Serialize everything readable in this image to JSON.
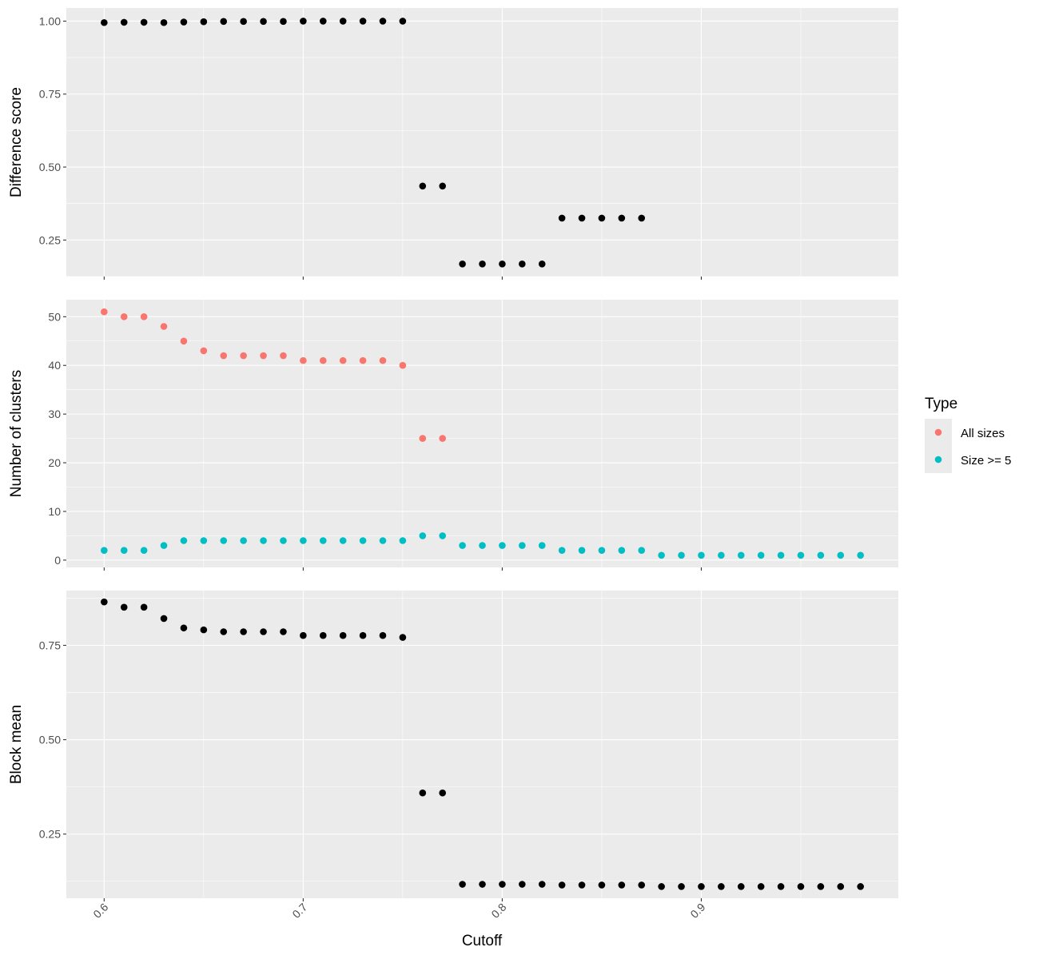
{
  "chart_data": {
    "type": "scatter",
    "xlabel": "Cutoff",
    "xlim": [
      0.581,
      0.999
    ],
    "x_ticks": [
      0.6,
      0.7,
      0.8,
      0.9
    ],
    "x_tick_labels": [
      "0.6",
      "0.7",
      "0.8",
      "0.9"
    ],
    "x": [
      0.6,
      0.61,
      0.62,
      0.63,
      0.64,
      0.65,
      0.66,
      0.67,
      0.68,
      0.69,
      0.7,
      0.71,
      0.72,
      0.73,
      0.74,
      0.75,
      0.76,
      0.77,
      0.78,
      0.79,
      0.8,
      0.81,
      0.82,
      0.83,
      0.84,
      0.85,
      0.86,
      0.87,
      0.88,
      0.89,
      0.9,
      0.91,
      0.92,
      0.93,
      0.94,
      0.95,
      0.96,
      0.97,
      0.98
    ],
    "grid": true,
    "legend": {
      "title": "Type",
      "position": "right",
      "entries": [
        {
          "label": "All sizes",
          "color": "#F8766D"
        },
        {
          "label": "Size >= 5",
          "color": "#00BFC4"
        }
      ]
    },
    "panels": [
      {
        "ylabel": "Difference score",
        "ylim": [
          0.125,
          1.045
        ],
        "y_ticks": [
          0.25,
          0.5,
          0.75,
          1.0
        ],
        "y_tick_labels": [
          "0.25",
          "0.50",
          "0.75",
          "1.00"
        ],
        "series": [
          {
            "color": "#000000",
            "values": [
              0.995,
              0.996,
              0.996,
              0.995,
              0.997,
              0.998,
              0.999,
              0.999,
              0.999,
              0.999,
              1.0,
              1.0,
              1.0,
              1.0,
              1.0,
              1.0,
              0.435,
              0.435,
              0.168,
              0.168,
              0.168,
              0.168,
              0.168,
              0.325,
              0.325,
              0.325,
              0.325,
              0.325,
              null,
              null,
              null,
              null,
              null,
              null,
              null,
              null,
              null,
              null,
              null
            ]
          }
        ]
      },
      {
        "ylabel": "Number of clusters",
        "ylim": [
          -1.5,
          53.5
        ],
        "y_ticks": [
          0,
          10,
          20,
          30,
          40,
          50
        ],
        "y_tick_labels": [
          "0",
          "10",
          "20",
          "30",
          "40",
          "50"
        ],
        "series": [
          {
            "name": "All sizes",
            "color": "#F8766D",
            "values": [
              51,
              50,
              50,
              48,
              45,
              43,
              42,
              42,
              42,
              42,
              41,
              41,
              41,
              41,
              41,
              40,
              25,
              25,
              null,
              null,
              null,
              null,
              null,
              null,
              null,
              null,
              null,
              null,
              null,
              null,
              null,
              null,
              null,
              null,
              null,
              null,
              null,
              null,
              null
            ]
          },
          {
            "name": "Size >= 5",
            "color": "#00BFC4",
            "values": [
              2,
              2,
              2,
              3,
              4,
              4,
              4,
              4,
              4,
              4,
              4,
              4,
              4,
              4,
              4,
              4,
              5,
              5,
              3,
              3,
              3,
              3,
              3,
              2,
              2,
              2,
              2,
              2,
              1,
              1,
              1,
              1,
              1,
              1,
              1,
              1,
              1,
              1,
              1
            ]
          }
        ]
      },
      {
        "ylabel": "Block mean",
        "ylim": [
          0.08,
          0.895
        ],
        "y_ticks": [
          0.25,
          0.5,
          0.75
        ],
        "y_tick_labels": [
          "0.25",
          "0.50",
          "0.75"
        ],
        "series": [
          {
            "color": "#000000",
            "values": [
              0.865,
              0.851,
              0.851,
              0.821,
              0.796,
              0.791,
              0.786,
              0.786,
              0.786,
              0.786,
              0.776,
              0.776,
              0.776,
              0.776,
              0.776,
              0.771,
              0.359,
              0.359,
              0.117,
              0.117,
              0.117,
              0.117,
              0.117,
              0.115,
              0.115,
              0.115,
              0.115,
              0.115,
              0.111,
              0.111,
              0.111,
              0.111,
              0.111,
              0.111,
              0.111,
              0.111,
              0.111,
              0.111,
              0.111
            ]
          }
        ]
      }
    ]
  }
}
